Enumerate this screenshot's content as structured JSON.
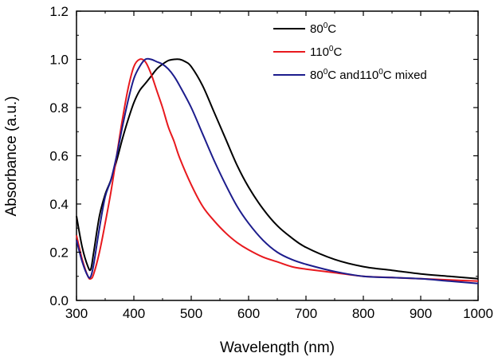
{
  "chart_data": {
    "type": "line",
    "xlabel": "Wavelength (nm)",
    "ylabel": "Absorbance (a.u.)",
    "xlim": [
      300,
      1000
    ],
    "ylim": [
      0.0,
      1.2
    ],
    "x_ticks": [
      "300",
      "400",
      "500",
      "600",
      "700",
      "800",
      "900",
      "1000"
    ],
    "y_ticks": [
      "0.0",
      "0.2",
      "0.4",
      "0.6",
      "0.8",
      "1.0",
      "1.2"
    ],
    "grid": false,
    "legend_position": "top-right",
    "series": [
      {
        "name": "80⁰C",
        "label_parts": [
          "80",
          "0",
          "C"
        ],
        "color": "#000000",
        "x": [
          300,
          310,
          320,
          325,
          330,
          340,
          350,
          360,
          370,
          380,
          390,
          400,
          410,
          420,
          430,
          440,
          450,
          460,
          470,
          480,
          490,
          500,
          520,
          540,
          560,
          580,
          600,
          625,
          650,
          675,
          700,
          750,
          800,
          850,
          900,
          950,
          1000
        ],
        "y": [
          0.35,
          0.22,
          0.14,
          0.13,
          0.2,
          0.35,
          0.44,
          0.5,
          0.58,
          0.67,
          0.75,
          0.82,
          0.87,
          0.9,
          0.93,
          0.96,
          0.98,
          0.995,
          1.0,
          1.0,
          0.99,
          0.97,
          0.89,
          0.78,
          0.67,
          0.56,
          0.47,
          0.38,
          0.31,
          0.26,
          0.22,
          0.17,
          0.14,
          0.125,
          0.11,
          0.1,
          0.09
        ]
      },
      {
        "name": "110⁰C",
        "label_parts": [
          "110",
          "0",
          "C"
        ],
        "color": "#e8191e",
        "x": [
          300,
          310,
          320,
          325,
          330,
          340,
          350,
          360,
          370,
          380,
          390,
          400,
          410,
          420,
          430,
          440,
          450,
          460,
          470,
          480,
          500,
          520,
          540,
          560,
          580,
          600,
          625,
          650,
          675,
          700,
          750,
          800,
          850,
          900,
          950,
          1000
        ],
        "y": [
          0.27,
          0.17,
          0.1,
          0.09,
          0.11,
          0.2,
          0.32,
          0.45,
          0.6,
          0.75,
          0.88,
          0.97,
          1.0,
          0.99,
          0.94,
          0.87,
          0.8,
          0.72,
          0.66,
          0.59,
          0.48,
          0.39,
          0.33,
          0.28,
          0.24,
          0.21,
          0.18,
          0.16,
          0.14,
          0.13,
          0.115,
          0.1,
          0.095,
          0.09,
          0.085,
          0.08
        ]
      },
      {
        "name": "80⁰C and110⁰C mixed",
        "label_parts": [
          "80",
          "0",
          "C and110",
          "0",
          "C mixed"
        ],
        "color": "#1c1c8c",
        "x": [
          300,
          310,
          320,
          325,
          330,
          340,
          350,
          360,
          370,
          380,
          390,
          400,
          410,
          420,
          430,
          440,
          450,
          460,
          470,
          480,
          500,
          520,
          540,
          560,
          580,
          600,
          625,
          650,
          675,
          700,
          750,
          800,
          850,
          900,
          950,
          1000
        ],
        "y": [
          0.25,
          0.16,
          0.1,
          0.1,
          0.15,
          0.3,
          0.43,
          0.5,
          0.6,
          0.72,
          0.83,
          0.92,
          0.97,
          1.0,
          1.0,
          0.99,
          0.98,
          0.96,
          0.93,
          0.89,
          0.8,
          0.69,
          0.58,
          0.48,
          0.39,
          0.32,
          0.25,
          0.2,
          0.17,
          0.15,
          0.12,
          0.1,
          0.095,
          0.09,
          0.08,
          0.07
        ]
      }
    ]
  }
}
